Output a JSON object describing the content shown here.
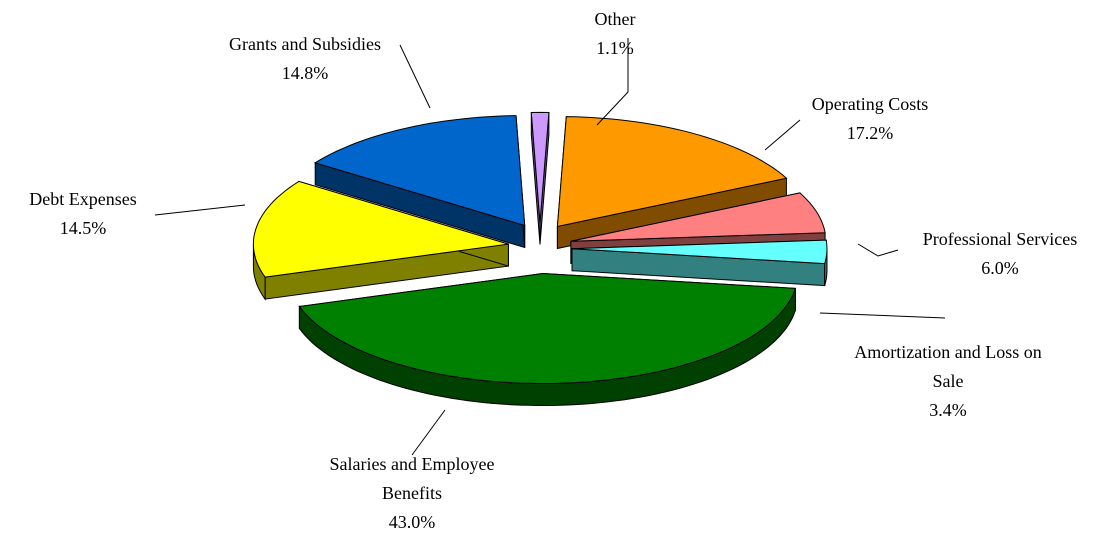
{
  "chart_data": {
    "type": "pie3d",
    "categories": [
      "Operating Costs",
      "Professional Services",
      "Amortization and Loss on Sale",
      "Salaries and Employee Benefits",
      "Debt Expenses",
      "Grants and Subsidies",
      "Other"
    ],
    "values": [
      17.2,
      6.0,
      3.4,
      43.0,
      14.5,
      14.8,
      1.1
    ],
    "value_labels": [
      "17.2%",
      "6.0%",
      "3.4%",
      "43.0%",
      "14.5%",
      "14.8%",
      "1.1%"
    ],
    "colors": [
      "#ff9900",
      "#ff8080",
      "#66ffff",
      "#008000",
      "#ffff00",
      "#0066cc",
      "#cc99ff"
    ]
  }
}
